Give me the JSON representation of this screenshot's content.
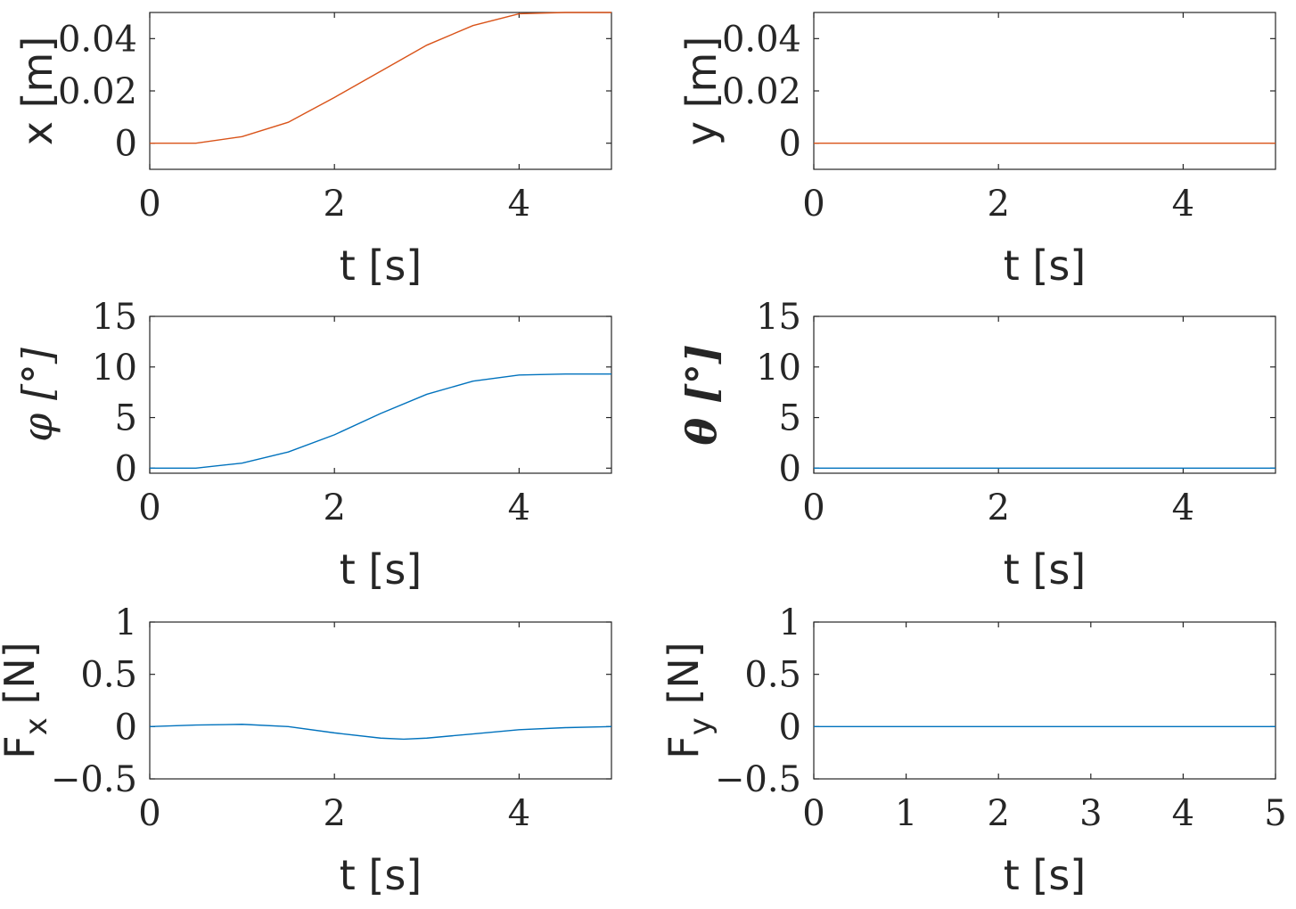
{
  "chart_data": [
    {
      "id": "x",
      "type": "line",
      "xlabel": "t [s]",
      "ylabel": {
        "main": "x [m]",
        "sub": ""
      },
      "xlim": [
        0,
        5
      ],
      "ylim": [
        -0.01,
        0.05
      ],
      "xticks": [
        0,
        2,
        4
      ],
      "xtick_labels": [
        "0",
        "2",
        "4"
      ],
      "yticks": [
        0,
        0.02,
        0.04
      ],
      "ytick_labels": [
        "0",
        "0.02",
        "0.04"
      ],
      "color": "#D95319",
      "series": [
        {
          "name": "x",
          "x": [
            0,
            0.5,
            1,
            1.5,
            2,
            2.5,
            3,
            3.5,
            4,
            4.5,
            5
          ],
          "y": [
            0,
            0,
            0.0025,
            0.008,
            0.0175,
            0.0275,
            0.0375,
            0.045,
            0.0495,
            0.05,
            0.05
          ]
        }
      ]
    },
    {
      "id": "y",
      "type": "line",
      "xlabel": "t [s]",
      "ylabel": {
        "main": "y [m]",
        "sub": ""
      },
      "xlim": [
        0,
        5
      ],
      "ylim": [
        -0.01,
        0.05
      ],
      "xticks": [
        0,
        2,
        4
      ],
      "xtick_labels": [
        "0",
        "2",
        "4"
      ],
      "yticks": [
        0,
        0.02,
        0.04
      ],
      "ytick_labels": [
        "0",
        "0.02",
        "0.04"
      ],
      "color": "#D95319",
      "series": [
        {
          "name": "y",
          "x": [
            0,
            5
          ],
          "y": [
            0,
            0
          ]
        }
      ]
    },
    {
      "id": "phi",
      "type": "line",
      "xlabel": "t [s]",
      "ylabel": {
        "main": "φ  [°]",
        "sub": ""
      },
      "xlim": [
        0,
        5
      ],
      "ylim": [
        -0.5,
        15
      ],
      "xticks": [
        0,
        2,
        4
      ],
      "xtick_labels": [
        "0",
        "2",
        "4"
      ],
      "yticks": [
        0,
        5,
        10,
        15
      ],
      "ytick_labels": [
        "0",
        "5",
        "10",
        "15"
      ],
      "color": "#0072BD",
      "series": [
        {
          "name": "phi",
          "x": [
            0,
            0.5,
            1,
            1.5,
            2,
            2.5,
            3,
            3.5,
            4,
            4.5,
            5
          ],
          "y": [
            0,
            0,
            0.5,
            1.6,
            3.3,
            5.4,
            7.3,
            8.6,
            9.2,
            9.3,
            9.3
          ]
        }
      ]
    },
    {
      "id": "theta",
      "type": "line",
      "xlabel": "t [s]",
      "ylabel": {
        "main": "θ [°]",
        "sub": ""
      },
      "xlim": [
        0,
        5
      ],
      "ylim": [
        -0.5,
        15
      ],
      "xticks": [
        0,
        2,
        4
      ],
      "xtick_labels": [
        "0",
        "2",
        "4"
      ],
      "yticks": [
        0,
        5,
        10,
        15
      ],
      "ytick_labels": [
        "0",
        "5",
        "10",
        "15"
      ],
      "color": "#0072BD",
      "series": [
        {
          "name": "theta",
          "x": [
            0,
            5
          ],
          "y": [
            0,
            0
          ]
        }
      ]
    },
    {
      "id": "Fx",
      "type": "line",
      "xlabel": "t [s]",
      "ylabel": {
        "main": "F",
        "sub": "x",
        "unit": " [N]"
      },
      "xlim": [
        0,
        5
      ],
      "ylim": [
        -0.5,
        1
      ],
      "xticks": [
        0,
        2,
        4
      ],
      "xtick_labels": [
        "0",
        "2",
        "4"
      ],
      "yticks": [
        -0.5,
        0,
        0.5,
        1
      ],
      "ytick_labels": [
        "−0.5",
        "0",
        "0.5",
        "1"
      ],
      "color": "#0072BD",
      "series": [
        {
          "name": "Fx",
          "x": [
            0,
            0.5,
            1,
            1.5,
            2,
            2.5,
            2.75,
            3,
            3.5,
            4,
            4.5,
            5
          ],
          "y": [
            0,
            0.015,
            0.022,
            0.0,
            -0.06,
            -0.11,
            -0.12,
            -0.11,
            -0.07,
            -0.03,
            -0.01,
            0
          ]
        }
      ]
    },
    {
      "id": "Fy",
      "type": "line",
      "xlabel": "t [s]",
      "ylabel": {
        "main": "F",
        "sub": "y",
        "unit": " [N]"
      },
      "xlim": [
        0,
        5
      ],
      "ylim": [
        -0.5,
        1
      ],
      "xticks": [
        0,
        1,
        2,
        3,
        4,
        5
      ],
      "xtick_labels": [
        "0",
        "1",
        "2",
        "3",
        "4",
        "5"
      ],
      "yticks": [
        -0.5,
        0,
        0.5,
        1
      ],
      "ytick_labels": [
        "−0.5",
        "0",
        "0.5",
        "1"
      ],
      "color": "#0072BD",
      "series": [
        {
          "name": "Fy",
          "x": [
            0,
            5
          ],
          "y": [
            0,
            0
          ]
        }
      ]
    }
  ]
}
